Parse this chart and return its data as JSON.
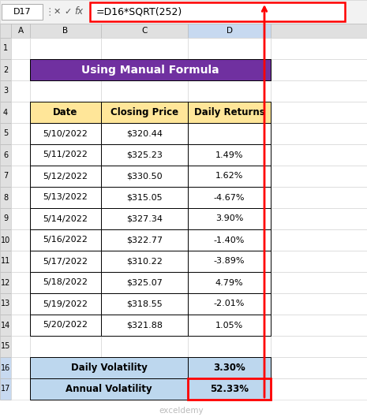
{
  "title": "Using Manual Formula",
  "title_bg": "#7030A0",
  "title_fg": "#FFFFFF",
  "header_bg": "#FFE699",
  "header_fg": "#000000",
  "col_headers": [
    "Date",
    "Closing Price",
    "Daily Returns"
  ],
  "rows": [
    [
      "5/10/2022",
      "$320.44",
      ""
    ],
    [
      "5/11/2022",
      "$325.23",
      "1.49%"
    ],
    [
      "5/12/2022",
      "$330.50",
      "1.62%"
    ],
    [
      "5/13/2022",
      "$315.05",
      "-4.67%"
    ],
    [
      "5/14/2022",
      "$327.34",
      "3.90%"
    ],
    [
      "5/16/2022",
      "$322.77",
      "-1.40%"
    ],
    [
      "5/17/2022",
      "$310.22",
      "-3.89%"
    ],
    [
      "5/18/2022",
      "$325.07",
      "4.79%"
    ],
    [
      "5/19/2022",
      "$318.55",
      "-2.01%"
    ],
    [
      "5/20/2022",
      "$321.88",
      "1.05%"
    ]
  ],
  "summary_rows": [
    [
      "Daily Volatility",
      "3.30%"
    ],
    [
      "Annual Volatility",
      "52.33%"
    ]
  ],
  "summary_bg": "#BDD7EE",
  "summary_fg": "#000000",
  "formula_bar_text": "=D16*SQRT(252)",
  "formula_bar_border": "#FF0000",
  "col_labels": [
    "A",
    "B",
    "C",
    "D"
  ],
  "row_labels": [
    "1",
    "2",
    "3",
    "4",
    "5",
    "6",
    "7",
    "8",
    "9",
    "10",
    "11",
    "12",
    "13",
    "14",
    "15",
    "16",
    "17"
  ],
  "active_cell": "D17",
  "watermark": "exceldemy",
  "arrow_color": "#FF0000",
  "hdr_bg": "#E0E0E0",
  "active_col_bg": "#C7D9F0",
  "top_bar_bg": "#F2F2F2"
}
